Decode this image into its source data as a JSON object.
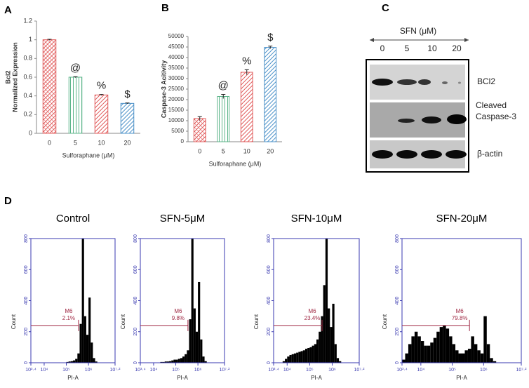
{
  "panel_labels": [
    "A",
    "B",
    "C",
    "D"
  ],
  "chart_data": [
    {
      "type": "bar",
      "categories": [
        "0",
        "5",
        "10",
        "20"
      ],
      "values": [
        1.0,
        0.6,
        0.41,
        0.32
      ],
      "errors": [
        0.005,
        0.005,
        0.005,
        0.004
      ],
      "value_annotations": [
        null,
        "@",
        "%",
        "$"
      ],
      "colors": [
        "#e05a5a",
        "#5db58a",
        "#e05a5a",
        "#4a90c8"
      ],
      "ylim": [
        0,
        1.2
      ],
      "yticks": [
        0,
        0.2,
        0.4,
        0.6,
        0.8,
        1,
        1.2
      ],
      "ylabel": [
        "Bcl2",
        "Normalized Expression"
      ],
      "xlabel": "Sulforaphane (μM)",
      "grid": false
    },
    {
      "type": "bar",
      "categories": [
        "0",
        "5",
        "10",
        "20"
      ],
      "values": [
        11000,
        21500,
        33000,
        44800
      ],
      "errors": [
        900,
        1000,
        1200,
        600
      ],
      "value_annotations": [
        null,
        "@",
        "%",
        "$"
      ],
      "colors": [
        "#e05a5a",
        "#5db58a",
        "#e05a5a",
        "#4a90c8"
      ],
      "ylim": [
        0,
        50000
      ],
      "yticks": [
        0,
        5000,
        10000,
        15000,
        20000,
        25000,
        30000,
        35000,
        40000,
        45000,
        50000
      ],
      "ylabel": [
        "Caspase-3 Acitivity"
      ],
      "xlabel": "Sulforaphane (μM)",
      "grid": false
    },
    {
      "type": "histogram",
      "title": "Control",
      "color": "#000000",
      "xlabel": "PI-A",
      "ylabel": "Count",
      "bins": [
        3.4,
        3.5,
        3.6,
        3.7,
        3.8,
        3.9,
        4.0,
        4.1,
        4.2,
        4.3,
        4.4,
        4.5,
        4.6,
        4.7,
        4.8,
        4.9,
        5.0,
        5.1,
        5.2,
        5.3,
        5.4,
        5.5,
        5.6,
        5.7,
        5.8,
        5.9,
        6.0,
        6.1,
        6.2,
        6.3,
        6.4,
        6.5,
        6.6,
        6.7,
        6.8,
        6.9,
        7.0,
        7.1,
        7.2
      ],
      "values": [
        0,
        0,
        0,
        0,
        0,
        0,
        0,
        0,
        0,
        0,
        0,
        0,
        0,
        0,
        0,
        0,
        5,
        8,
        10,
        15,
        25,
        60,
        250,
        800,
        300,
        180,
        420,
        130,
        30,
        8,
        0,
        0,
        0,
        0,
        0,
        0,
        0,
        0
      ],
      "xlim": [
        3.4,
        7.2
      ],
      "xticks": [
        {
          "value": 3.4,
          "label": "10³·⁴"
        },
        {
          "value": 4,
          "label": "10⁴"
        },
        {
          "value": 5,
          "label": "10⁵"
        },
        {
          "value": 6,
          "label": "10⁶"
        },
        {
          "value": 7.2,
          "label": "10⁷·²"
        }
      ],
      "ylim": [
        0,
        800
      ],
      "yticks": [
        0,
        200,
        400,
        600,
        800
      ],
      "gate": {
        "name": "M6",
        "label": "2.1%",
        "range": [
          3.4,
          5.55
        ],
        "level": 240
      }
    },
    {
      "type": "histogram",
      "title": "SFN-5μM",
      "color": "#000000",
      "xlabel": "PI-A",
      "ylabel": "Count",
      "bins": [
        3.4,
        3.5,
        3.6,
        3.7,
        3.8,
        3.9,
        4.0,
        4.1,
        4.2,
        4.3,
        4.4,
        4.5,
        4.6,
        4.7,
        4.8,
        4.9,
        5.0,
        5.1,
        5.2,
        5.3,
        5.4,
        5.5,
        5.6,
        5.7,
        5.8,
        5.9,
        6.0,
        6.1,
        6.2,
        6.3,
        6.4,
        6.5,
        6.6,
        6.7,
        6.8,
        6.9,
        7.0,
        7.1,
        7.2
      ],
      "values": [
        0,
        0,
        0,
        0,
        0,
        0,
        0,
        0,
        0,
        5,
        5,
        8,
        8,
        10,
        15,
        20,
        20,
        25,
        30,
        40,
        55,
        80,
        280,
        800,
        350,
        200,
        520,
        150,
        40,
        10,
        0,
        0,
        0,
        0,
        0,
        0,
        0,
        0
      ],
      "xlim": [
        3.4,
        7.2
      ],
      "xticks": [
        {
          "value": 3.4,
          "label": "10³·⁴"
        },
        {
          "value": 4,
          "label": "10⁴"
        },
        {
          "value": 5,
          "label": "10⁵"
        },
        {
          "value": 6,
          "label": "10⁶"
        },
        {
          "value": 7.2,
          "label": "10⁷·²"
        }
      ],
      "ylim": [
        0,
        800
      ],
      "yticks": [
        0,
        200,
        400,
        600,
        800
      ],
      "gate": {
        "name": "M6",
        "label": "9.8%",
        "range": [
          3.4,
          5.55
        ],
        "level": 240
      }
    },
    {
      "type": "histogram",
      "title": "SFN-10μM",
      "color": "#000000",
      "xlabel": "PI-A",
      "ylabel": "Count",
      "bins": [
        3.4,
        3.5,
        3.6,
        3.7,
        3.8,
        3.9,
        4.0,
        4.1,
        4.2,
        4.3,
        4.4,
        4.5,
        4.6,
        4.7,
        4.8,
        4.9,
        5.0,
        5.1,
        5.2,
        5.3,
        5.4,
        5.5,
        5.6,
        5.7,
        5.8,
        5.9,
        6.0,
        6.1,
        6.2,
        6.3,
        6.4,
        6.5,
        6.6,
        6.7,
        6.8,
        6.9,
        7.0,
        7.1,
        7.2
      ],
      "values": [
        0,
        0,
        0,
        0,
        10,
        25,
        40,
        50,
        55,
        60,
        65,
        70,
        75,
        80,
        90,
        95,
        100,
        110,
        120,
        150,
        200,
        300,
        500,
        800,
        350,
        230,
        380,
        120,
        30,
        10,
        0,
        0,
        0,
        0,
        0,
        0,
        0,
        0
      ],
      "xlim": [
        3.4,
        7.2
      ],
      "xticks": [
        {
          "value": 3.4,
          "label": "10³·⁴"
        },
        {
          "value": 4,
          "label": "10⁴"
        },
        {
          "value": 5,
          "label": "10⁵"
        },
        {
          "value": 6,
          "label": "10⁶"
        },
        {
          "value": 7.2,
          "label": "10⁷·²"
        }
      ],
      "ylim": [
        0,
        800
      ],
      "yticks": [
        0,
        200,
        400,
        600,
        800
      ],
      "gate": {
        "name": "M6",
        "label": "23.4%",
        "range": [
          3.4,
          5.55
        ],
        "level": 240
      }
    },
    {
      "type": "histogram",
      "title": "SFN-20μM",
      "color": "#000000",
      "xlabel": "PI-A",
      "ylabel": "Count",
      "bins": [
        3.4,
        3.5,
        3.6,
        3.7,
        3.8,
        3.9,
        4.0,
        4.1,
        4.2,
        4.3,
        4.4,
        4.5,
        4.6,
        4.7,
        4.8,
        4.9,
        5.0,
        5.1,
        5.2,
        5.3,
        5.4,
        5.5,
        5.6,
        5.7,
        5.8,
        5.9,
        6.0,
        6.1,
        6.2,
        6.3,
        6.4,
        6.5,
        6.6,
        6.7,
        6.8,
        6.9,
        7.0,
        7.1,
        7.2
      ],
      "values": [
        20,
        60,
        120,
        170,
        200,
        170,
        140,
        110,
        110,
        130,
        160,
        200,
        230,
        240,
        220,
        170,
        120,
        80,
        60,
        60,
        80,
        90,
        170,
        120,
        80,
        60,
        300,
        120,
        30,
        10,
        0,
        0,
        0,
        0,
        0,
        0,
        0,
        0
      ],
      "xlim": [
        3.4,
        7.2
      ],
      "xticks": [
        {
          "value": 3.4,
          "label": "10³·⁴"
        },
        {
          "value": 4,
          "label": "10⁴"
        },
        {
          "value": 5,
          "label": "10⁵"
        },
        {
          "value": 6,
          "label": "10⁶"
        },
        {
          "value": 7.2,
          "label": "10⁷·²"
        }
      ],
      "ylim": [
        0,
        800
      ],
      "yticks": [
        0,
        200,
        400,
        600,
        800
      ],
      "gate": {
        "name": "M6",
        "label": "79.8%",
        "range": [
          3.4,
          5.55
        ],
        "level": 240
      }
    }
  ],
  "blot": {
    "treatment": "SFN  (μM)",
    "lanes": [
      "0",
      "5",
      "10",
      "20"
    ],
    "rows": [
      "BCl2",
      "Cleaved Caspase-3",
      "β-actin"
    ]
  }
}
